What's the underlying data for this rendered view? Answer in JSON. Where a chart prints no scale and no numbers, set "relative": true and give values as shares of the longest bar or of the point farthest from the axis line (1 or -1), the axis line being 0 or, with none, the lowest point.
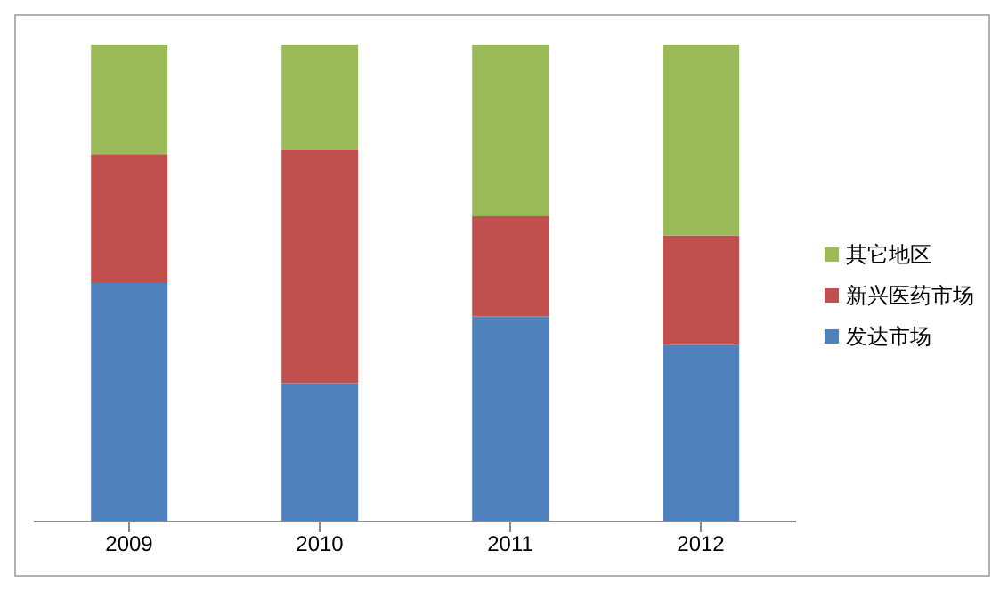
{
  "chart_data": {
    "type": "bar",
    "stacked": true,
    "relative": true,
    "categories": [
      "2009",
      "2010",
      "2011",
      "2012"
    ],
    "series": [
      {
        "name": "发达市场",
        "color": "#4f81bd",
        "values": [
          0.5,
          0.29,
          0.43,
          0.37
        ]
      },
      {
        "name": "新兴医药市场",
        "color": "#c0504d",
        "values": [
          0.27,
          0.49,
          0.21,
          0.23
        ]
      },
      {
        "name": "其它地区",
        "color": "#9bbb59",
        "values": [
          0.23,
          0.22,
          0.36,
          0.4
        ]
      }
    ],
    "legend": "right",
    "grid": false
  }
}
